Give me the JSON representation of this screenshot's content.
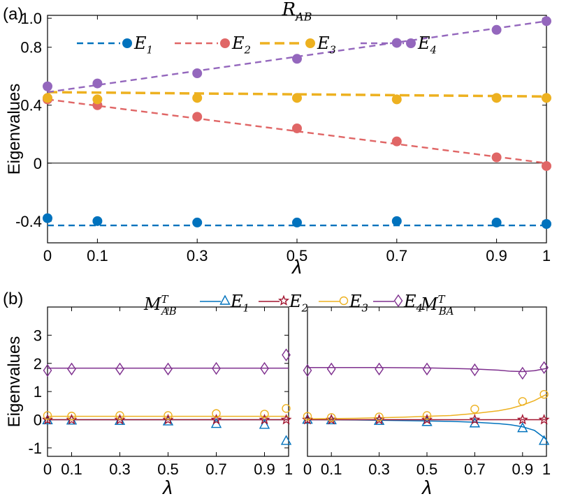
{
  "chart_data": [
    {
      "type": "scatter",
      "panel_label": "(a)",
      "title": "R",
      "title_sub": "AB",
      "xlabel": "λ",
      "ylabel": "Eigenvalues",
      "xlim": [
        0,
        1
      ],
      "ylim": [
        -0.55,
        1.02
      ],
      "xticks": [
        0,
        0.1,
        0.3,
        0.5,
        0.7,
        0.9,
        1
      ],
      "xtick_labels": [
        "0",
        "0.1",
        "0.3",
        "0.5",
        "0.7",
        "0.9",
        "1"
      ],
      "yticks": [
        -0.4,
        0,
        0.4,
        0.8,
        1.0
      ],
      "ytick_labels": [
        "-0.4",
        "0",
        "0.4",
        "0.8",
        "1.0"
      ],
      "zero_line": true,
      "legend_placement": "top",
      "series": [
        {
          "name": "E",
          "sub": "1",
          "color": "#0072bd",
          "x": [
            0,
            0.1,
            0.3,
            0.5,
            0.7,
            0.9,
            1
          ],
          "y": [
            -0.38,
            -0.4,
            -0.41,
            -0.41,
            -0.4,
            -0.41,
            -0.42
          ],
          "line_x": [
            0,
            1
          ],
          "line_y": [
            -0.43,
            -0.43
          ]
        },
        {
          "name": "E",
          "sub": "2",
          "color": "#e06666",
          "x": [
            0,
            0.1,
            0.3,
            0.5,
            0.7,
            0.9,
            1
          ],
          "y": [
            0.44,
            0.4,
            0.32,
            0.24,
            0.15,
            0.04,
            -0.02
          ],
          "line_x": [
            0,
            1
          ],
          "line_y": [
            0.44,
            0.0
          ]
        },
        {
          "name": "E",
          "sub": "3",
          "color": "#edb120",
          "x": [
            0,
            0.1,
            0.3,
            0.5,
            0.7,
            0.9,
            1
          ],
          "y": [
            0.45,
            0.44,
            0.45,
            0.45,
            0.44,
            0.45,
            0.45
          ],
          "line_x": [
            0,
            1
          ],
          "line_y": [
            0.49,
            0.46
          ]
        },
        {
          "name": "E",
          "sub": "4",
          "color": "#9467bd",
          "x": [
            0,
            0.1,
            0.3,
            0.5,
            0.7,
            0.9,
            1
          ],
          "y": [
            0.53,
            0.55,
            0.62,
            0.72,
            0.83,
            0.92,
            0.98
          ],
          "line_x": [
            0,
            1
          ],
          "line_y": [
            0.49,
            0.98
          ]
        }
      ]
    },
    {
      "type": "line",
      "panel_label": "(b)",
      "title": "M",
      "title_sub": "AB",
      "title_sup": "T",
      "xlabel": "λ",
      "ylabel": "Eigenvalues",
      "xlim": [
        0,
        1
      ],
      "ylim": [
        -1.3,
        4.0
      ],
      "xticks": [
        0,
        0.1,
        0.3,
        0.5,
        0.7,
        0.9,
        1
      ],
      "xtick_labels": [
        "0",
        "0.1",
        "0.3",
        "0.5",
        "0.7",
        "0.9",
        "1"
      ],
      "yticks": [
        -1,
        0,
        1,
        2,
        3
      ],
      "ytick_labels": [
        "-1",
        "0",
        "1",
        "2",
        "3"
      ],
      "legend_placement": "top",
      "series": [
        {
          "name": "E",
          "sub": "1",
          "color": "#0072bd",
          "marker": "triangle",
          "x": [
            0,
            0.1,
            0.3,
            0.5,
            0.7,
            0.9,
            0.99
          ],
          "y": [
            -0.02,
            -0.03,
            -0.04,
            -0.06,
            -0.15,
            -0.18,
            -0.75
          ],
          "line_x": [
            0,
            1
          ],
          "line_y": [
            0.0,
            0.0
          ]
        },
        {
          "name": "E",
          "sub": "2",
          "color": "#a2142f",
          "marker": "star",
          "x": [
            0,
            0.1,
            0.3,
            0.5,
            0.7,
            0.9,
            0.99
          ],
          "y": [
            0.0,
            0.0,
            0.0,
            0.0,
            0.0,
            0.0,
            0.0
          ],
          "line_x": [
            0,
            1
          ],
          "line_y": [
            0.0,
            0.0
          ]
        },
        {
          "name": "E",
          "sub": "3",
          "color": "#edb120",
          "marker": "circle",
          "x": [
            0,
            0.1,
            0.3,
            0.5,
            0.7,
            0.9,
            0.99
          ],
          "y": [
            0.15,
            0.13,
            0.15,
            0.15,
            0.22,
            0.2,
            0.4
          ],
          "line_x": [
            0,
            1
          ],
          "line_y": [
            0.12,
            0.12
          ]
        },
        {
          "name": "E",
          "sub": "4",
          "color": "#7e2f8e",
          "marker": "diamond",
          "x": [
            0,
            0.1,
            0.3,
            0.5,
            0.7,
            0.9,
            0.99
          ],
          "y": [
            1.75,
            1.8,
            1.8,
            1.8,
            1.82,
            1.82,
            2.3
          ],
          "line_x": [
            0,
            1
          ],
          "line_y": [
            1.83,
            1.83
          ]
        }
      ]
    },
    {
      "type": "line",
      "title": "M",
      "title_sub": "BA",
      "title_sup": "T",
      "xlabel": "λ",
      "xlim": [
        0,
        1
      ],
      "ylim": [
        -1.3,
        4.0
      ],
      "xticks": [
        0,
        0.1,
        0.3,
        0.5,
        0.7,
        0.9,
        1
      ],
      "xtick_labels": [
        "0",
        "0.1",
        "0.3",
        "0.5",
        "0.7",
        "0.9",
        "1"
      ],
      "series": [
        {
          "name": "E",
          "sub": "1",
          "color": "#0072bd",
          "marker": "triangle",
          "x": [
            0,
            0.1,
            0.3,
            0.5,
            0.7,
            0.9,
            0.99
          ],
          "y": [
            0.0,
            -0.02,
            -0.04,
            -0.08,
            -0.13,
            -0.3,
            -0.75
          ],
          "line_x": [
            0,
            0.2,
            0.4,
            0.6,
            0.7,
            0.8,
            0.85,
            0.9,
            0.95,
            1.0
          ],
          "line_y": [
            0.0,
            -0.01,
            -0.03,
            -0.06,
            -0.09,
            -0.14,
            -0.18,
            -0.25,
            -0.38,
            -0.7
          ]
        },
        {
          "name": "E",
          "sub": "2",
          "color": "#a2142f",
          "marker": "star",
          "x": [
            0,
            0.1,
            0.3,
            0.5,
            0.7,
            0.9,
            0.99
          ],
          "y": [
            0.0,
            0.0,
            0.0,
            0.0,
            0.0,
            0.0,
            0.0
          ],
          "line_x": [
            0,
            1
          ],
          "line_y": [
            0.0,
            0.0
          ]
        },
        {
          "name": "E",
          "sub": "3",
          "color": "#edb120",
          "marker": "circle",
          "x": [
            0,
            0.1,
            0.3,
            0.5,
            0.7,
            0.9,
            0.99
          ],
          "y": [
            0.12,
            0.08,
            0.1,
            0.15,
            0.38,
            0.65,
            0.9
          ],
          "line_x": [
            0,
            0.2,
            0.4,
            0.6,
            0.7,
            0.8,
            0.85,
            0.9,
            0.95,
            1.0
          ],
          "line_y": [
            0.03,
            0.05,
            0.09,
            0.15,
            0.22,
            0.32,
            0.4,
            0.52,
            0.68,
            0.9
          ]
        },
        {
          "name": "E",
          "sub": "4",
          "color": "#7e2f8e",
          "marker": "diamond",
          "x": [
            0,
            0.1,
            0.3,
            0.5,
            0.7,
            0.9,
            0.99
          ],
          "y": [
            1.75,
            1.8,
            1.8,
            1.8,
            1.77,
            1.65,
            1.85
          ],
          "line_x": [
            0,
            0.3,
            0.5,
            0.6,
            0.7,
            0.8,
            0.85,
            0.9,
            0.95,
            1.0
          ],
          "line_y": [
            1.85,
            1.85,
            1.84,
            1.82,
            1.8,
            1.76,
            1.72,
            1.71,
            1.74,
            1.82
          ]
        }
      ]
    }
  ]
}
